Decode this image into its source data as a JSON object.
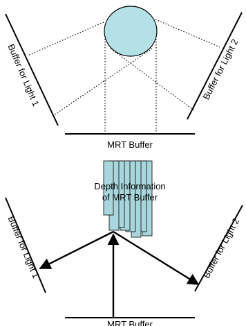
{
  "top": {
    "buffer_left": "Buffer for Light 1",
    "buffer_right": "Buffer for Light 2",
    "mrt_buffer": "MRT Buffer"
  },
  "bottom": {
    "depth_line1": "Depth Information",
    "depth_line2": "of MRT Buffer",
    "buffer_left": "Buffer for Light 1",
    "buffer_right": "Buffer for Light 2",
    "mrt_buffer": "MRT Buffer"
  },
  "colors": {
    "sphere_fill": "#b3e1e6",
    "depth_fill": "#a9d6dc",
    "line": "#000000"
  }
}
